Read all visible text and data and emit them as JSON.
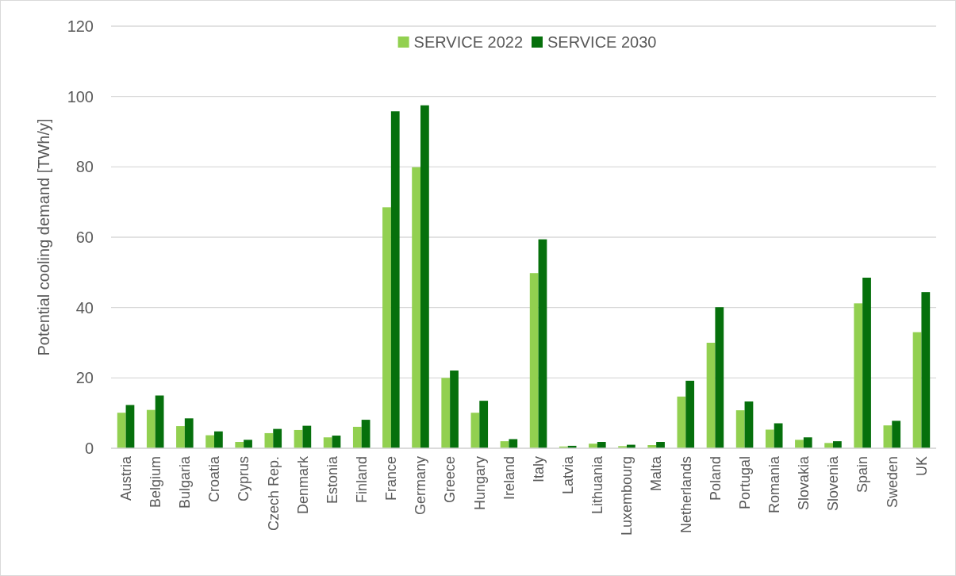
{
  "chart_data": {
    "type": "bar",
    "ylabel": "Potential cooling demand [TWh/y]",
    "categories": [
      "Austria",
      "Belgium",
      "Bulgaria",
      "Croatia",
      "Cyprus",
      "Czech Rep.",
      "Denmark",
      "Estonia",
      "Finland",
      "France",
      "Germany",
      "Greece",
      "Hungary",
      "Ireland",
      "Italy",
      "Latvia",
      "Lithuania",
      "Luxembourg",
      "Malta",
      "Netherlands",
      "Poland",
      "Portugal",
      "Romania",
      "Slovakia",
      "Slovenia",
      "Spain",
      "Sweden",
      "UK"
    ],
    "series": [
      {
        "name": "SERVICE 2022",
        "color": "#92d050",
        "values": [
          10.1,
          10.9,
          6.3,
          3.7,
          1.8,
          4.3,
          5.2,
          3.1,
          6.1,
          68.5,
          79.9,
          20.0,
          10.1,
          2.0,
          49.8,
          0.5,
          1.3,
          0.6,
          0.9,
          14.7,
          30.0,
          10.8,
          5.3,
          2.4,
          1.5,
          41.2,
          6.5,
          33.0
        ]
      },
      {
        "name": "SERVICE 2030",
        "color": "#06700c",
        "values": [
          12.3,
          15.0,
          8.5,
          4.8,
          2.4,
          5.5,
          6.4,
          3.6,
          8.1,
          95.8,
          97.5,
          22.1,
          13.5,
          2.6,
          59.4,
          0.7,
          1.8,
          1.0,
          1.8,
          19.2,
          40.1,
          13.3,
          7.1,
          3.1,
          2.0,
          48.5,
          7.8,
          44.4
        ]
      }
    ],
    "ylim": [
      0,
      120
    ],
    "yticks": [
      0,
      20,
      40,
      60,
      80,
      100,
      120
    ],
    "grid": "y",
    "legend": "top"
  }
}
